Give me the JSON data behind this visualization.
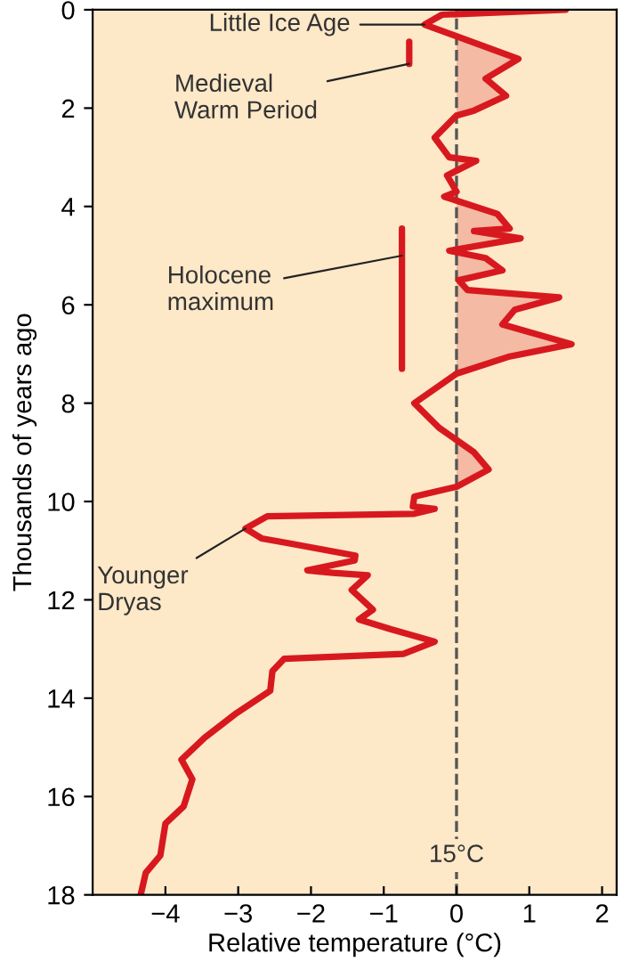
{
  "chart_data": {
    "type": "line",
    "orientation": "horizontal",
    "xlabel": "Relative temperature (°C)",
    "ylabel": "Thousands of years ago",
    "xlim": [
      -5,
      2.2
    ],
    "xticks": [
      -4,
      -3,
      -2,
      -1,
      0,
      1,
      2
    ],
    "ylim": [
      18,
      0
    ],
    "yticks": [
      0,
      2,
      4,
      6,
      8,
      10,
      12,
      14,
      16,
      18
    ],
    "grid": false,
    "series": [
      {
        "color": "#d7191f",
        "x": [
          0,
          0.1,
          0.3,
          1.0,
          1.4,
          1.75,
          2.05,
          2.15,
          2.6,
          3.0,
          3.07,
          3.37,
          3.7,
          3.8,
          4.15,
          4.45,
          4.5,
          4.65,
          4.9,
          5.05,
          5.3,
          5.5,
          5.7,
          5.85,
          6.1,
          6.4,
          6.8,
          7.05,
          7.4,
          8.0,
          8.5,
          9.0,
          9.35,
          9.7,
          9.9,
          10.1,
          10.15,
          10.25,
          10.3,
          10.55,
          10.75,
          10.85,
          11.1,
          11.2,
          11.4,
          11.45,
          11.5,
          11.8,
          12.2,
          12.4,
          12.6,
          12.85,
          13.1,
          13.2,
          13.45,
          13.85,
          14.3,
          14.8,
          15.25,
          15.65,
          16.2,
          16.55,
          17.2,
          17.55,
          18.0
        ],
        "values": [
          1.5,
          -0.2,
          -0.44,
          0.85,
          0.4,
          0.68,
          0.24,
          0,
          -0.3,
          -0.1,
          0.27,
          -0.13,
          0,
          -0.17,
          0.56,
          0.73,
          0.24,
          0.88,
          -0.1,
          0.4,
          0.63,
          0.03,
          0.15,
          1.41,
          0.8,
          0.63,
          1.58,
          0.73,
          0,
          -0.58,
          -0.24,
          0.24,
          0.44,
          0,
          -0.58,
          -0.6,
          -0.3,
          -0.58,
          -2.6,
          -2.9,
          -2.68,
          -2.3,
          -1.39,
          -1.4,
          -2.05,
          -1.7,
          -1.22,
          -1.44,
          -1.15,
          -1.34,
          -0.9,
          -0.3,
          -0.73,
          -2.37,
          -2.53,
          -2.56,
          -3.02,
          -3.46,
          -3.78,
          -3.63,
          -3.75,
          -4.0,
          -4.07,
          -4.27,
          -4.34
        ]
      },
      {
        "color": "#d7191f",
        "x": [
          0.65,
          1.1
        ],
        "values": [
          -0.65,
          -0.65
        ]
      },
      {
        "color": "#d7191f",
        "x": [
          4.45,
          7.3
        ],
        "values": [
          -0.75,
          -0.75
        ]
      }
    ],
    "ref_lines": [
      {
        "axis": "x",
        "value": 0,
        "label": "15°C",
        "color": "#555555",
        "line_style": "dashed"
      }
    ],
    "annotations": [
      {
        "text": "Little Ice Age",
        "x": -0.44,
        "y": 0.3
      },
      {
        "text": "Medieval\nWarm Period",
        "x": -0.65,
        "y": 1.1
      },
      {
        "text": "Holocene\nmaximum",
        "x": -0.75,
        "y": 5.0
      },
      {
        "text": "Younger\nDryas",
        "x": -2.9,
        "y": 10.55
      }
    ]
  }
}
